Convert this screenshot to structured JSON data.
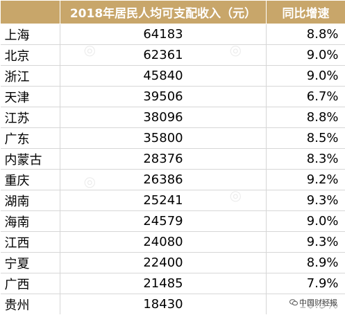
{
  "table": {
    "headers": [
      "",
      "2018年居民人均可支配收入（元）",
      "同比增速"
    ],
    "rows": [
      {
        "region": "上海",
        "income": "64183",
        "growth": "8.8%"
      },
      {
        "region": "北京",
        "income": "62361",
        "growth": "9.0%"
      },
      {
        "region": "浙江",
        "income": "45840",
        "growth": "9.0%"
      },
      {
        "region": "天津",
        "income": "39506",
        "growth": "6.7%"
      },
      {
        "region": "江苏",
        "income": "38096",
        "growth": "8.8%"
      },
      {
        "region": "广东",
        "income": "35800",
        "growth": "8.5%"
      },
      {
        "region": "内蒙古",
        "income": "28376",
        "growth": "8.3%"
      },
      {
        "region": "重庆",
        "income": "26386",
        "growth": "9.2%"
      },
      {
        "region": "湖南",
        "income": "25241",
        "growth": "9.3%"
      },
      {
        "region": "海南",
        "income": "24579",
        "growth": "9.0%"
      },
      {
        "region": "江西",
        "income": "24080",
        "growth": "9.3%"
      },
      {
        "region": "宁夏",
        "income": "22400",
        "growth": "8.9%"
      },
      {
        "region": "广西",
        "income": "21485",
        "growth": "7.9%"
      },
      {
        "region": "贵州",
        "income": "18430",
        "growth": "10.3%"
      }
    ]
  },
  "watermark": {
    "text": "中国财经报",
    "icon": "wechat-icon"
  },
  "colors": {
    "header_bg": "#c8a66a",
    "header_text": "#ffffff"
  }
}
